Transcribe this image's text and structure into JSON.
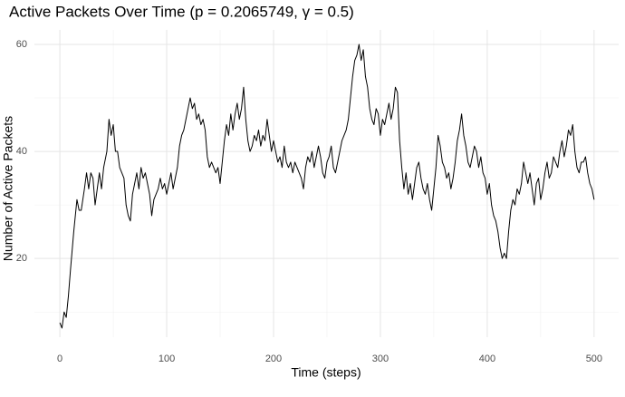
{
  "chart_data": {
    "type": "line",
    "title": "Active Packets Over Time (p = 0.2065749, γ = 0.5)",
    "x_label": "Time (steps)",
    "y_label": "Number of Active Packets",
    "color": "#000000",
    "grid": true,
    "xlim": [
      -23.8,
      523
    ],
    "xticks": [
      0,
      100,
      200,
      300,
      400,
      500
    ],
    "ylim": [
      5.3,
      62.7
    ],
    "yticks": [
      20,
      40,
      60
    ],
    "x": [
      0,
      2,
      4,
      6,
      8,
      10,
      13,
      16,
      18,
      20,
      23,
      25,
      27,
      29,
      31,
      33,
      35,
      37,
      39,
      41,
      44,
      46,
      48,
      50,
      52,
      54,
      56,
      58,
      60,
      62,
      64,
      66,
      68,
      70,
      72,
      74,
      76,
      78,
      80,
      82,
      84,
      86,
      88,
      90,
      92,
      94,
      96,
      98,
      100,
      102,
      104,
      106,
      108,
      110,
      112,
      114,
      116,
      118,
      120,
      122,
      124,
      126,
      128,
      130,
      132,
      134,
      136,
      138,
      140,
      142,
      144,
      146,
      148,
      150,
      152,
      154,
      156,
      158,
      160,
      162,
      164,
      166,
      168,
      170,
      172,
      174,
      176,
      178,
      180,
      182,
      184,
      186,
      188,
      190,
      192,
      194,
      196,
      198,
      200,
      202,
      204,
      206,
      208,
      210,
      212,
      214,
      216,
      218,
      220,
      222,
      224,
      226,
      228,
      230,
      232,
      234,
      236,
      238,
      240,
      242,
      244,
      246,
      248,
      250,
      252,
      254,
      256,
      258,
      260,
      262,
      264,
      266,
      268,
      270,
      272,
      274,
      276,
      278,
      280,
      282,
      284,
      286,
      288,
      290,
      292,
      294,
      296,
      298,
      300,
      302,
      304,
      306,
      308,
      310,
      312,
      314,
      316,
      318,
      320,
      322,
      324,
      326,
      328,
      330,
      332,
      334,
      336,
      338,
      340,
      342,
      344,
      346,
      348,
      350,
      352,
      354,
      356,
      358,
      360,
      362,
      364,
      366,
      368,
      370,
      372,
      374,
      376,
      378,
      380,
      382,
      384,
      386,
      388,
      390,
      392,
      394,
      396,
      398,
      400,
      402,
      404,
      406,
      408,
      410,
      412,
      414,
      416,
      418,
      420,
      422,
      424,
      426,
      428,
      430,
      432,
      434,
      436,
      438,
      440,
      442,
      444,
      446,
      448,
      450,
      452,
      454,
      456,
      458,
      460,
      462,
      464,
      466,
      468,
      470,
      472,
      474,
      476,
      478,
      480,
      482,
      484,
      486,
      488,
      490,
      492,
      494,
      496,
      498,
      500
    ],
    "values": [
      8,
      7,
      10,
      9,
      13,
      18,
      25,
      31,
      29,
      29,
      33,
      36,
      33,
      36,
      35,
      30,
      33,
      36,
      33,
      37,
      40,
      46,
      43,
      45,
      40,
      40,
      37,
      36,
      35,
      30,
      28,
      27,
      32,
      34,
      36,
      33,
      37,
      35,
      36,
      34,
      32,
      28,
      31,
      32,
      33,
      35,
      33,
      34,
      32,
      34,
      36,
      33,
      35,
      37,
      41,
      43,
      44,
      46,
      48,
      50,
      48,
      49,
      46,
      47,
      45,
      46,
      44,
      39,
      37,
      38,
      37,
      36,
      37,
      34,
      38,
      42,
      45,
      43,
      47,
      44,
      47,
      49,
      46,
      48,
      52,
      46,
      42,
      40,
      41,
      43,
      42,
      44,
      41,
      43,
      42,
      46,
      43,
      40,
      42,
      40,
      38,
      39,
      37,
      41,
      38,
      37,
      38,
      36,
      38,
      37,
      36,
      35,
      33,
      37,
      39,
      38,
      40,
      37,
      39,
      41,
      39,
      36,
      35,
      38,
      39,
      41,
      37,
      36,
      38,
      40,
      42,
      43,
      44,
      46,
      50,
      54,
      57,
      58,
      60,
      57,
      59,
      54,
      52,
      48,
      46,
      45,
      48,
      47,
      43,
      46,
      45,
      47,
      49,
      46,
      48,
      52,
      51,
      42,
      37,
      33,
      36,
      32,
      34,
      31,
      34,
      37,
      38,
      35,
      33,
      32,
      34,
      31,
      29,
      33,
      37,
      43,
      41,
      38,
      37,
      35,
      36,
      33,
      35,
      38,
      42,
      44,
      47,
      43,
      41,
      38,
      37,
      39,
      41,
      40,
      37,
      39,
      36,
      35,
      32,
      34,
      30,
      28,
      27,
      25,
      22,
      20,
      21,
      20,
      25,
      29,
      31,
      30,
      33,
      32,
      34,
      38,
      36,
      34,
      36,
      33,
      30,
      34,
      35,
      31,
      33,
      36,
      38,
      35,
      36,
      39,
      38,
      37,
      40,
      42,
      39,
      41,
      44,
      43,
      45,
      40,
      37,
      36,
      38,
      38,
      39,
      36,
      34,
      33,
      31
    ]
  }
}
